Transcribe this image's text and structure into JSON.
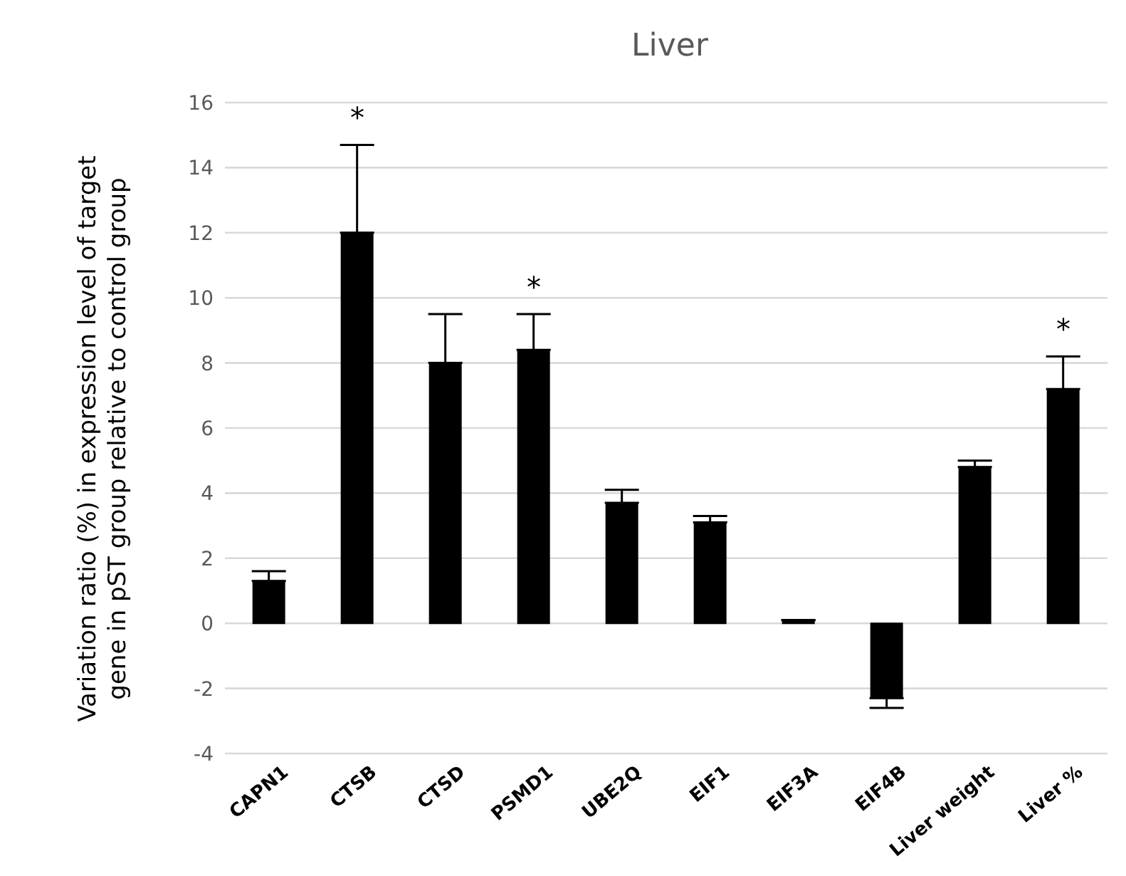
{
  "chart_data": {
    "type": "bar",
    "title": "Liver",
    "ylabel": "Variation ratio (%) in expression level of target gene in pST group relative to control group",
    "categories": [
      "CAPN1",
      "CTSB",
      "CTSD",
      "PSMD1",
      "UBE2Q",
      "EIF1",
      "EIF3A",
      "EIF4B",
      "Liver weight",
      "Liver %"
    ],
    "values": [
      1.3,
      12.0,
      8.0,
      8.4,
      3.7,
      3.1,
      0.1,
      -2.3,
      4.8,
      7.2
    ],
    "errors": [
      [
        1.3,
        1.6
      ],
      [
        12.0,
        14.7
      ],
      [
        8.0,
        9.5
      ],
      [
        8.4,
        9.5
      ],
      [
        3.7,
        4.1
      ],
      [
        3.1,
        3.3
      ],
      [
        0.1,
        0.1
      ],
      [
        -2.6,
        -2.3
      ],
      [
        4.8,
        5.0
      ],
      [
        7.2,
        8.2
      ]
    ],
    "color": "#000000",
    "ylim": [
      -4,
      16
    ],
    "yticks": [
      -4,
      -2,
      0,
      2,
      4,
      6,
      8,
      10,
      12,
      14,
      16
    ],
    "grid": "y",
    "annotations": [
      {
        "text": "*",
        "x": "CTSB",
        "y": 14.7
      },
      {
        "text": "*",
        "x": "PSMD1",
        "y": 9.5
      },
      {
        "text": "*",
        "x": "Liver %",
        "y": 8.2
      }
    ]
  }
}
